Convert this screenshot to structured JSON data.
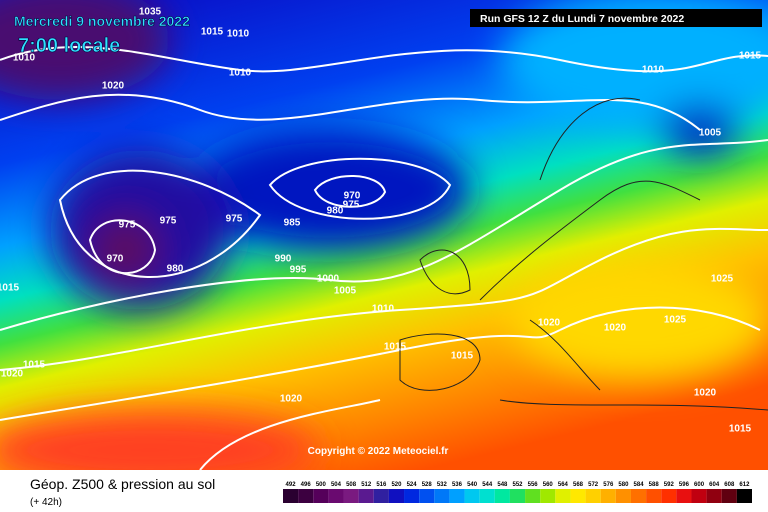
{
  "header": {
    "date": "Mercredi 9 novembre 2022",
    "time": "7:00 locale",
    "run": "Run GFS 12 Z du Lundi 7 novembre 2022",
    "copyright": "Copyright © 2022 Meteociel.fr"
  },
  "footer": {
    "title": "Géop. Z500 & pression au sol",
    "lead": "(+ 42h)"
  },
  "isobars": [
    1035,
    1015,
    1010,
    1010,
    1020,
    1010,
    1010,
    1015,
    1005,
    970,
    975,
    980,
    975,
    975,
    975,
    985,
    970,
    980,
    990,
    995,
    1000,
    1005,
    1010,
    1015,
    1020,
    1020,
    1025,
    1025,
    1015,
    1015,
    1015,
    1020,
    1020,
    1020,
    1015
  ],
  "scale": {
    "values": [
      492,
      496,
      500,
      504,
      508,
      512,
      516,
      520,
      524,
      528,
      532,
      536,
      540,
      544,
      548,
      552,
      556,
      560,
      564,
      568,
      572,
      576,
      580,
      584,
      588,
      592,
      596,
      600,
      604,
      608,
      612
    ],
    "colors": [
      "#2a0030",
      "#3c0040",
      "#55005a",
      "#6a0a70",
      "#7a1a80",
      "#5a1a90",
      "#3020a0",
      "#1010c0",
      "#0028e0",
      "#0050f0",
      "#0078f8",
      "#00a0ff",
      "#00c8f0",
      "#00e0d0",
      "#00e8a0",
      "#20e060",
      "#60e020",
      "#a0e800",
      "#e0f000",
      "#ffe800",
      "#ffd000",
      "#ffb000",
      "#ff9000",
      "#ff7000",
      "#ff5000",
      "#ff3000",
      "#e81010",
      "#c00010",
      "#900010",
      "#600010",
      "#000000"
    ]
  }
}
